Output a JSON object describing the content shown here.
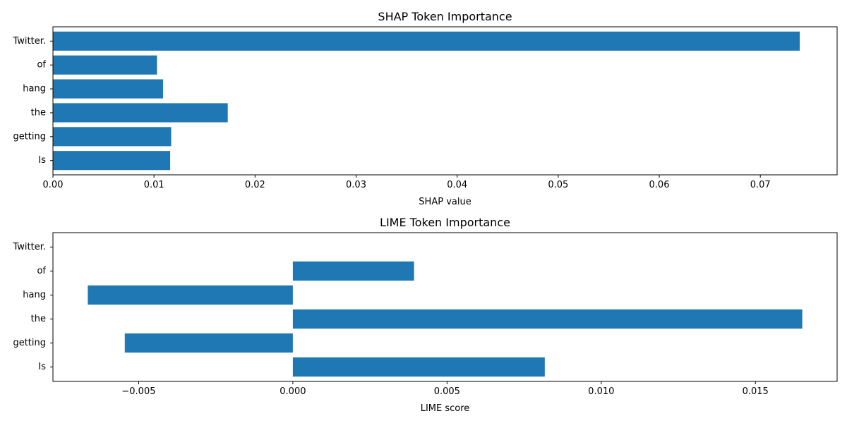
{
  "colors": {
    "bar": "#1f77b4",
    "axis": "#000000",
    "background": "#ffffff"
  },
  "chart_data": [
    {
      "type": "bar",
      "orientation": "horizontal",
      "title": "SHAP Token Importance",
      "xlabel": "SHAP value",
      "ylabel": "",
      "categories": [
        "Is",
        "getting",
        "the",
        "hang",
        "of",
        "Twitter."
      ],
      "values": [
        0.0116,
        0.0117,
        0.0173,
        0.0109,
        0.0103,
        0.0739
      ],
      "xlim": [
        0,
        0.0776
      ],
      "xticks": [
        0,
        0.01,
        0.02,
        0.03,
        0.04,
        0.05,
        0.06,
        0.07
      ],
      "xtick_labels": [
        "0.00",
        "0.01",
        "0.02",
        "0.03",
        "0.04",
        "0.05",
        "0.06",
        "0.07"
      ],
      "grid": false,
      "legend": "none"
    },
    {
      "type": "bar",
      "orientation": "horizontal",
      "title": "LIME Token Importance",
      "xlabel": "LIME score",
      "ylabel": "",
      "categories": [
        "Is",
        "getting",
        "the",
        "hang",
        "of",
        "Twitter."
      ],
      "values": [
        0.00817,
        -0.00545,
        0.01652,
        -0.00665,
        0.00393,
        0
      ],
      "xlim": [
        -0.00778,
        0.01765
      ],
      "xticks": [
        -0.005,
        0,
        0.005,
        0.01,
        0.015
      ],
      "xtick_labels": [
        "−0.005",
        "0.000",
        "0.005",
        "0.010",
        "0.015"
      ],
      "grid": false,
      "legend": "none"
    }
  ]
}
